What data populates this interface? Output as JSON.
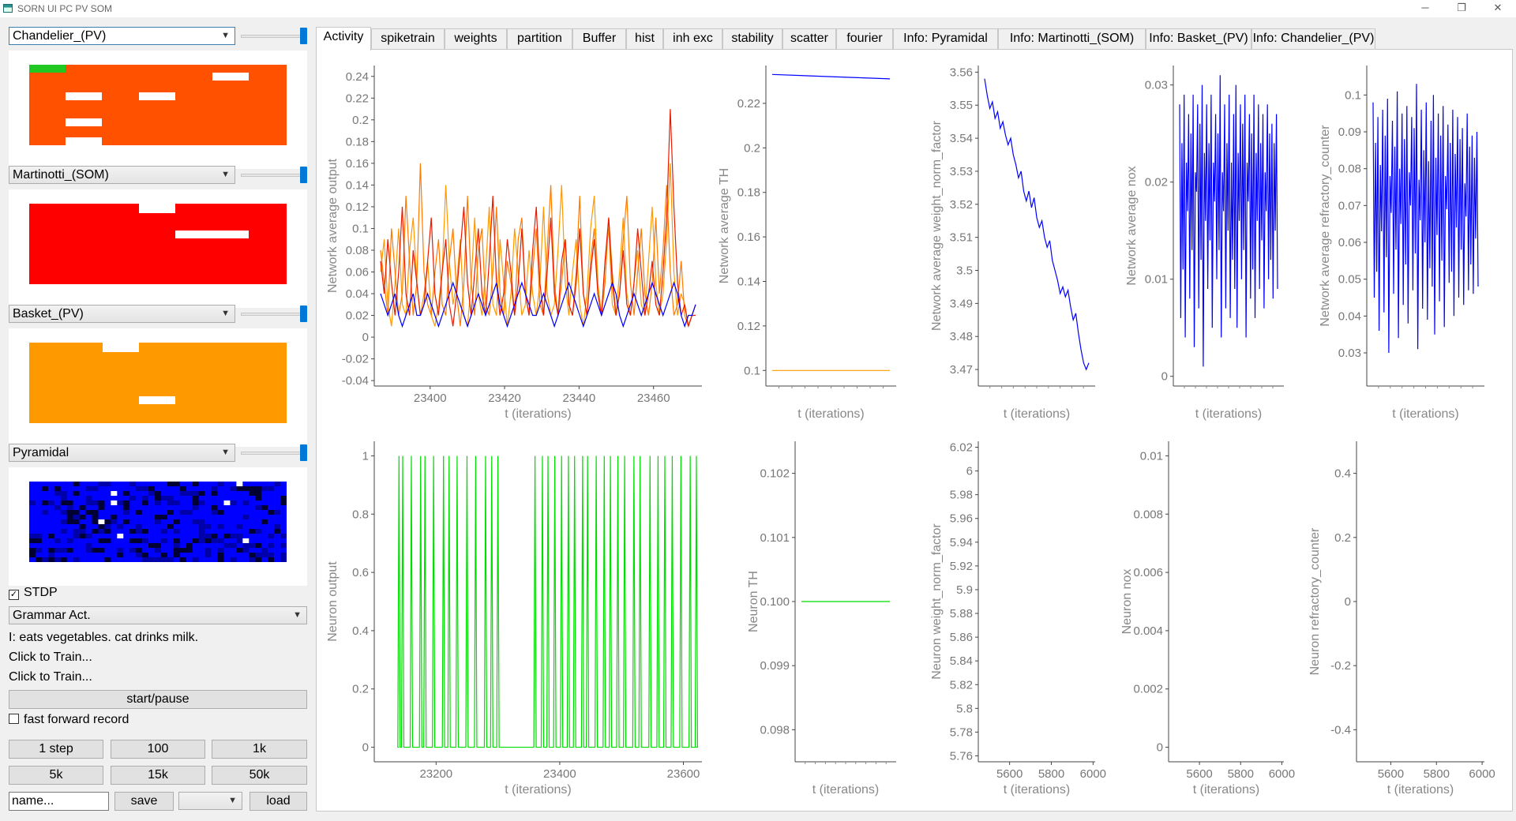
{
  "window": {
    "title": "SORN UI PC PV SOM",
    "minimize": "─",
    "maximize": "❐",
    "close": "✕"
  },
  "groups": [
    {
      "name": "Chandelier_(PV)",
      "color": "#ff5100"
    },
    {
      "name": "Martinotti_(SOM)",
      "color": "#ff0000"
    },
    {
      "name": "Basket_(PV)",
      "color": "#ff9900"
    },
    {
      "name": "Pyramidal",
      "color": "#0000ff"
    }
  ],
  "controls": {
    "stdp_label": "STDP",
    "stdp_checked": true,
    "behavior_select": "Grammar Act.",
    "input_text": "I:  eats vegetables. cat drinks milk.",
    "train_line_1": "Click to Train...",
    "train_line_2": "Click to Train...",
    "start_pause": "start/pause",
    "fast_forward_label": "fast forward record",
    "fast_forward_checked": false,
    "step_buttons": [
      "1 step",
      "100",
      "1k",
      "5k",
      "15k",
      "50k"
    ],
    "name_placeholder": "name...",
    "save": "save",
    "load": "load"
  },
  "tabs": [
    "Activity",
    "spiketrain",
    "weights",
    "partition",
    "Buffer",
    "hist",
    "inh exc",
    "stability",
    "scatter",
    "fourier",
    "Info: Pyramidal",
    "Info: Martinotti_(SOM)",
    "Info: Basket_(PV)",
    "Info: Chandelier_(PV)"
  ],
  "active_tab": "Activity",
  "chart_data": [
    {
      "type": "line",
      "xlabel": "t (iterations)",
      "ylabel": "Network average output",
      "xlim": [
        23385,
        23473
      ],
      "ylim": [
        -0.045,
        0.25
      ],
      "xticks": [
        23400,
        23420,
        23440,
        23460
      ],
      "yticks": [
        -0.04,
        -0.02,
        0,
        0.02,
        0.04,
        0.06,
        0.08,
        0.1,
        0.12,
        0.14,
        0.16,
        0.18,
        0.2,
        0.22,
        0.24
      ],
      "x_start": 23385,
      "x_end": 23473,
      "series": [
        {
          "color": "#ff9900",
          "values": [
            0.06,
            0.09,
            0.03,
            0.01,
            0.05,
            0.1,
            0.03,
            0.02,
            0.08,
            0.11,
            0.05,
            0.02,
            0.04,
            0.07,
            0.02,
            0.01,
            0.03,
            0.06,
            0.14,
            0.07,
            0.03,
            0.05,
            0.09,
            0.02,
            0.01,
            0.05,
            0.11,
            0.04,
            0.02,
            0.06,
            0.12,
            0.03,
            0.02,
            0.09,
            0.05,
            0.01,
            0.04,
            0.1,
            0.06,
            0.02,
            0.03,
            0.08,
            0.04,
            0.02,
            0.05,
            0.12,
            0.04,
            0.02,
            0.03,
            0.08,
            0.14,
            0.05,
            0.02,
            0.06,
            0.09,
            0.03,
            0.01,
            0.04,
            0.1,
            0.13,
            0.05,
            0.02,
            0.07,
            0.1,
            0.03,
            0.02,
            0.06,
            0.11,
            0.04,
            0.02,
            0.05,
            0.08,
            0.03,
            0.02,
            0.07,
            0.12,
            0.05,
            0.02,
            0.04,
            0.09,
            0.16,
            0.06,
            0.02,
            0.04,
            0.03,
            0.01,
            0.02,
            0.03
          ]
        },
        {
          "color": "#ff7a00",
          "values": [
            0.08,
            0.05,
            0.02,
            0.1,
            0.06,
            0.02,
            0.04,
            0.13,
            0.07,
            0.02,
            0.05,
            0.16,
            0.06,
            0.03,
            0.02,
            0.06,
            0.09,
            0.03,
            0.02,
            0.07,
            0.1,
            0.04,
            0.01,
            0.05,
            0.13,
            0.05,
            0.02,
            0.08,
            0.1,
            0.03,
            0.02,
            0.06,
            0.12,
            0.04,
            0.02,
            0.07,
            0.05,
            0.02,
            0.09,
            0.11,
            0.04,
            0.02,
            0.06,
            0.1,
            0.03,
            0.02,
            0.08,
            0.14,
            0.05,
            0.02,
            0.05,
            0.09,
            0.03,
            0.02,
            0.06,
            0.13,
            0.04,
            0.02,
            0.07,
            0.1,
            0.04,
            0.02,
            0.05,
            0.11,
            0.06,
            0.02,
            0.04,
            0.09,
            0.13,
            0.05,
            0.02,
            0.06,
            0.1,
            0.04,
            0.02,
            0.05,
            0.11,
            0.04,
            0.08,
            0.14,
            0.06,
            0.02,
            0.03,
            0.07,
            0.02,
            0.01,
            0.02,
            0.03
          ]
        },
        {
          "color": "#e81b00",
          "values": [
            0.07,
            0.04,
            0.09,
            0.05,
            0.02,
            0.06,
            0.12,
            0.04,
            0.02,
            0.08,
            0.05,
            0.02,
            0.03,
            0.07,
            0.11,
            0.04,
            0.02,
            0.06,
            0.09,
            0.03,
            0.01,
            0.04,
            0.08,
            0.12,
            0.05,
            0.02,
            0.06,
            0.1,
            0.04,
            0.02,
            0.07,
            0.13,
            0.05,
            0.02,
            0.04,
            0.09,
            0.06,
            0.02,
            0.05,
            0.1,
            0.04,
            0.02,
            0.08,
            0.12,
            0.05,
            0.02,
            0.06,
            0.11,
            0.04,
            0.02,
            0.07,
            0.09,
            0.03,
            0.02,
            0.05,
            0.1,
            0.04,
            0.02,
            0.06,
            0.09,
            0.04,
            0.02,
            0.07,
            0.11,
            0.05,
            0.02,
            0.04,
            0.08,
            0.03,
            0.02,
            0.05,
            0.1,
            0.06,
            0.02,
            0.04,
            0.07,
            0.03,
            0.02,
            0.06,
            0.11,
            0.21,
            0.12,
            0.05,
            0.02,
            0.03,
            0.01,
            0.02,
            0.02
          ]
        },
        {
          "color": "#0000ff",
          "values": [
            0.04,
            0.03,
            0.02,
            0.03,
            0.04,
            0.02,
            0.01,
            0.02,
            0.03,
            0.04,
            0.02,
            0.02,
            0.03,
            0.04,
            0.03,
            0.02,
            0.01,
            0.02,
            0.03,
            0.04,
            0.05,
            0.04,
            0.03,
            0.02,
            0.01,
            0.02,
            0.03,
            0.04,
            0.03,
            0.02,
            0.03,
            0.04,
            0.05,
            0.03,
            0.02,
            0.01,
            0.02,
            0.03,
            0.04,
            0.05,
            0.04,
            0.03,
            0.02,
            0.02,
            0.03,
            0.04,
            0.03,
            0.02,
            0.01,
            0.02,
            0.03,
            0.04,
            0.05,
            0.04,
            0.03,
            0.02,
            0.01,
            0.02,
            0.03,
            0.04,
            0.03,
            0.02,
            0.03,
            0.04,
            0.05,
            0.04,
            0.02,
            0.01,
            0.02,
            0.03,
            0.04,
            0.03,
            0.02,
            0.03,
            0.04,
            0.05,
            0.04,
            0.03,
            0.02,
            0.03,
            0.04,
            0.05,
            0.04,
            0.02,
            0.01,
            0.02,
            0.02,
            0.03
          ]
        }
      ]
    },
    {
      "type": "line",
      "xlabel": "t (iterations)",
      "ylabel": "Network average TH",
      "ylim": [
        0.093,
        0.237
      ],
      "yticks": [
        0.1,
        0.12,
        0.14,
        0.16,
        0.18,
        0.2,
        0.22
      ],
      "series": [
        {
          "color": "#0000ff",
          "values": [
            0.233,
            0.232,
            0.231
          ]
        },
        {
          "color": "#ff9900",
          "values": [
            0.1,
            0.1,
            0.1
          ]
        }
      ]
    },
    {
      "type": "line",
      "xlabel": "t (iterations)",
      "ylabel": "Network average weight_norm_factor",
      "ylim": [
        3.465,
        3.562
      ],
      "yticks": [
        3.47,
        3.48,
        3.49,
        3.5,
        3.51,
        3.52,
        3.53,
        3.54,
        3.55,
        3.56
      ],
      "series": [
        {
          "color": "#0000ff",
          "values": [
            3.558,
            3.553,
            3.549,
            3.551,
            3.546,
            3.548,
            3.543,
            3.545,
            3.541,
            3.538,
            3.54,
            3.535,
            3.532,
            3.528,
            3.53,
            3.524,
            3.521,
            3.524,
            3.519,
            3.522,
            3.516,
            3.513,
            3.515,
            3.51,
            3.507,
            3.509,
            3.503,
            3.5,
            3.497,
            3.493,
            3.495,
            3.492,
            3.494,
            3.489,
            3.485,
            3.487,
            3.481,
            3.476,
            3.472,
            3.47,
            3.472
          ]
        }
      ]
    },
    {
      "type": "line",
      "xlabel": "t (iterations)",
      "ylabel": "Network average nox",
      "ylim": [
        -0.001,
        0.032
      ],
      "yticks": [
        0,
        0.01,
        0.02,
        0.03
      ],
      "series": [
        {
          "color": "#0000ff",
          "values": [
            0.028,
            0.006,
            0.024,
            0.011,
            0.029,
            0.004,
            0.022,
            0.017,
            0.027,
            0.008,
            0.025,
            0.013,
            0.029,
            0.003,
            0.021,
            0.019,
            0.028,
            0.007,
            0.026,
            0.012,
            0.03,
            0.001,
            0.023,
            0.016,
            0.028,
            0.009,
            0.024,
            0.014,
            0.029,
            0.005,
            0.022,
            0.018,
            0.027,
            0.01,
            0.025,
            0.013,
            0.031,
            0.004,
            0.021,
            0.017,
            0.028,
            0.007,
            0.024,
            0.015,
            0.029,
            0.006,
            0.022,
            0.012,
            0.027,
            0.009,
            0.03,
            0.005,
            0.023,
            0.016,
            0.028,
            0.01,
            0.026,
            0.013,
            0.029,
            0.004,
            0.022,
            0.018,
            0.027,
            0.008,
            0.025,
            0.011,
            0.029,
            0.006,
            0.023,
            0.016,
            0.028,
            0.009,
            0.024,
            0.014,
            0.027,
            0.007,
            0.021,
            0.017,
            0.028,
            0.01,
            0.025,
            0.012,
            0.026,
            0.008,
            0.024,
            0.015,
            0.027,
            0.009
          ]
        }
      ]
    },
    {
      "type": "line",
      "xlabel": "t (iterations)",
      "ylabel": "Network average refractory_counter",
      "ylim": [
        0.021,
        0.108
      ],
      "yticks": [
        0.03,
        0.04,
        0.05,
        0.06,
        0.07,
        0.08,
        0.09,
        0.1
      ],
      "series": [
        {
          "color": "#0000ff",
          "values": [
            0.098,
            0.045,
            0.087,
            0.052,
            0.094,
            0.036,
            0.081,
            0.063,
            0.096,
            0.041,
            0.089,
            0.056,
            0.099,
            0.03,
            0.078,
            0.068,
            0.093,
            0.046,
            0.086,
            0.058,
            0.101,
            0.034,
            0.08,
            0.065,
            0.095,
            0.043,
            0.088,
            0.054,
            0.097,
            0.038,
            0.079,
            0.07,
            0.094,
            0.047,
            0.091,
            0.057,
            0.103,
            0.031,
            0.077,
            0.066,
            0.096,
            0.042,
            0.085,
            0.06,
            0.098,
            0.039,
            0.082,
            0.053,
            0.093,
            0.048,
            0.1,
            0.035,
            0.083,
            0.062,
            0.095,
            0.044,
            0.089,
            0.055,
            0.097,
            0.037,
            0.078,
            0.069,
            0.092,
            0.049,
            0.087,
            0.052,
            0.096,
            0.04,
            0.084,
            0.064,
            0.094,
            0.045,
            0.088,
            0.058,
            0.091,
            0.043,
            0.076,
            0.067,
            0.095,
            0.047,
            0.086,
            0.054,
            0.089,
            0.046,
            0.083,
            0.061,
            0.09,
            0.048
          ]
        }
      ]
    },
    {
      "type": "line",
      "xlabel": "t (iterations)",
      "ylabel": "Neuron output",
      "xlim": [
        23100,
        23630
      ],
      "ylim": [
        -0.05,
        1.05
      ],
      "xticks": [
        23200,
        23400,
        23600
      ],
      "yticks": [
        0,
        0.2,
        0.4,
        0.6,
        0.8,
        1
      ],
      "series": [
        {
          "color": "#00dd00",
          "spikes": [
            23140,
            23146,
            23160,
            23175,
            23182,
            23196,
            23212,
            23221,
            23234,
            23250,
            23264,
            23280,
            23290,
            23300,
            23360,
            23372,
            23381,
            23392,
            23403,
            23414,
            23424,
            23437,
            23445,
            23459,
            23472,
            23482,
            23494,
            23505,
            23520,
            23530,
            23546,
            23559,
            23570,
            23582,
            23596,
            23611,
            23621
          ]
        }
      ]
    },
    {
      "type": "line",
      "xlabel": "t (iterations)",
      "ylabel": "Neuron TH",
      "ylim": [
        0.0975,
        0.1025
      ],
      "yticks": [
        0.098,
        0.099,
        0.1,
        0.101,
        0.102
      ],
      "ytick_labels": [
        "0.098",
        "0.099",
        "0.100",
        "0.101",
        "0.102"
      ],
      "series": [
        {
          "color": "#00dd00",
          "values": [
            0.1,
            0.1
          ]
        }
      ]
    },
    {
      "type": "line",
      "xlabel": "t (iterations)",
      "ylabel": "Neuron weight_norm_factor",
      "xlim": [
        5450,
        6010
      ],
      "ylim": [
        5.755,
        6.025
      ],
      "xticks": [
        5600,
        5800,
        6000
      ],
      "yticks": [
        5.76,
        5.78,
        5.8,
        5.82,
        5.84,
        5.86,
        5.88,
        5.9,
        5.92,
        5.94,
        5.96,
        5.98,
        6.0,
        6.02
      ],
      "series": []
    },
    {
      "type": "line",
      "xlabel": "t (iterations)",
      "ylabel": "Neuron nox",
      "xlim": [
        5450,
        6010
      ],
      "ylim": [
        -0.0005,
        0.0105
      ],
      "xticks": [
        5600,
        5800,
        6000
      ],
      "yticks": [
        0,
        0.002,
        0.004,
        0.006,
        0.008,
        0.01
      ],
      "series": []
    },
    {
      "type": "line",
      "xlabel": "t (iterations)",
      "ylabel": "Neuron refractory_counter",
      "xlim": [
        5450,
        6010
      ],
      "ylim": [
        -0.5,
        0.5
      ],
      "xticks": [
        5600,
        5800,
        6000
      ],
      "yticks": [
        -0.4,
        -0.2,
        0,
        0.2,
        0.4
      ],
      "series": []
    }
  ]
}
